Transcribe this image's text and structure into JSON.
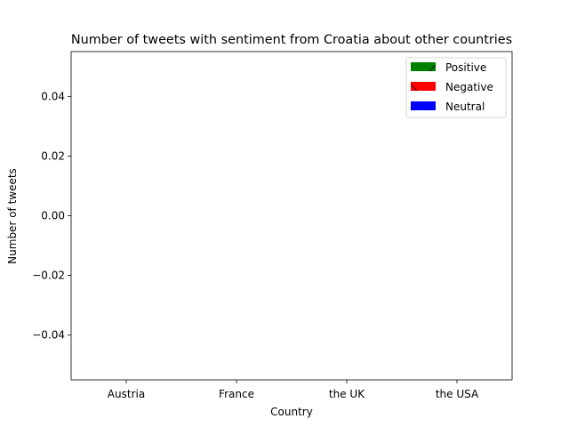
{
  "chart_data": {
    "type": "bar",
    "title": "Number of tweets with sentiment from Croatia about other countries",
    "xlabel": "Country",
    "ylabel": "Number of tweets",
    "categories": [
      "Austria",
      "France",
      "the UK",
      "the USA"
    ],
    "series": [
      {
        "name": "Positive",
        "values": [
          0,
          0,
          0,
          0
        ],
        "color": "#008000",
        "hatch": "diagonal-forward"
      },
      {
        "name": "Negative",
        "values": [
          0,
          0,
          0,
          0
        ],
        "color": "#ff0000",
        "hatch": "diagonal-back"
      },
      {
        "name": "Neutral",
        "values": [
          0,
          0,
          0,
          0
        ],
        "color": "#0000ff",
        "hatch": "none"
      }
    ],
    "ylim": [
      -0.055,
      0.055
    ],
    "yticks": [
      "−0.04",
      "−0.02",
      "0.00",
      "0.02",
      "0.04"
    ],
    "ytick_values": [
      -0.04,
      -0.02,
      0.0,
      0.02,
      0.04
    ],
    "grid": false,
    "legend_position": "top-right"
  }
}
